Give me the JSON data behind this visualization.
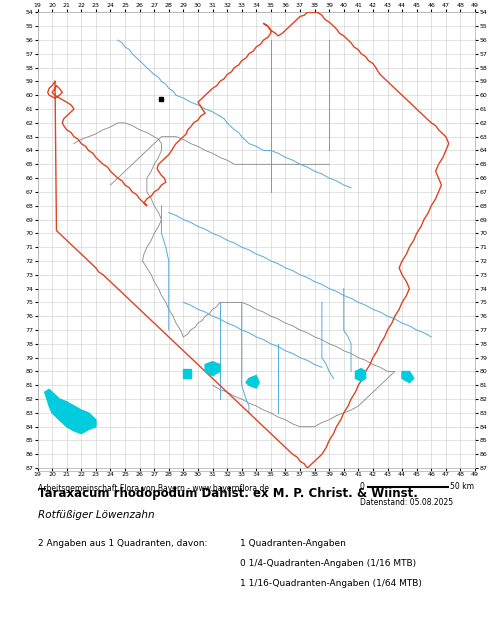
{
  "title": "Taraxacum rhodopodum Dahlst. ex M. P. Christ. & Wiinst.",
  "subtitle": "Rotfüßiger Löwenzahn",
  "credit": "Arbeitsgemeinschaft Flora von Bayern - www.bayernflora.de",
  "date_label": "Datenstand: 05.08.2025",
  "scale_label": "50 km",
  "stats_line1": "2 Angaben aus 1 Quadranten, davon:",
  "stats_col2_line1": "1 Quadranten-Angaben",
  "stats_col2_line2": "0 1/4-Quadranten-Angaben (1/16 MTB)",
  "stats_col2_line3": "1 1/16-Quadranten-Angaben (1/64 MTB)",
  "bg_color": "#ffffff",
  "grid_color": "#cccccc",
  "border_color_outer": "#dd4422",
  "border_color_inner": "#888888",
  "river_color": "#55aadd",
  "lake_color": "#00ccdd",
  "marker_color": "#000000",
  "x_ticks": [
    19,
    20,
    21,
    22,
    23,
    24,
    25,
    26,
    27,
    28,
    29,
    30,
    31,
    32,
    33,
    34,
    35,
    36,
    37,
    38,
    39,
    40,
    41,
    42,
    43,
    44,
    45,
    46,
    47,
    48,
    49
  ],
  "y_ticks": [
    54,
    55,
    56,
    57,
    58,
    59,
    60,
    61,
    62,
    63,
    64,
    65,
    66,
    67,
    68,
    69,
    70,
    71,
    72,
    73,
    74,
    75,
    76,
    77,
    78,
    79,
    80,
    81,
    82,
    83,
    84,
    85,
    86,
    87
  ],
  "x_min": 19,
  "x_max": 49,
  "y_min": 54,
  "y_max": 87,
  "marker_x": 27.5,
  "marker_y": 60.3,
  "bavaria_outer_x": [
    20.2,
    20.0,
    19.8,
    19.7,
    19.8,
    20.2,
    20.5,
    20.7,
    20.5,
    20.3,
    20.2,
    20.0,
    20.2,
    20.5,
    21.0,
    21.3,
    21.5,
    21.3,
    21.0,
    20.8,
    20.7,
    20.8,
    21.0,
    21.3,
    21.5,
    21.8,
    22.0,
    22.3,
    22.5,
    22.8,
    23.0,
    23.2,
    23.5,
    23.8,
    24.0,
    24.2,
    24.5,
    24.8,
    25.0,
    25.3,
    25.5,
    25.8,
    26.0,
    26.2,
    26.5,
    26.5,
    26.3,
    26.5,
    26.8,
    27.0,
    27.3,
    27.5,
    27.8,
    27.7,
    27.5,
    27.3,
    27.2,
    27.3,
    27.5,
    27.8,
    28.0,
    28.2,
    28.3,
    28.5,
    28.7,
    29.0,
    29.2,
    29.3,
    29.5,
    29.7,
    30.0,
    30.2,
    30.5,
    30.3,
    30.2,
    30.0,
    30.2,
    30.5,
    30.7,
    31.0,
    31.3,
    31.5,
    31.8,
    32.0,
    32.3,
    32.5,
    32.8,
    33.0,
    33.3,
    33.5,
    33.8,
    34.0,
    34.3,
    34.5,
    34.8,
    35.0,
    35.0,
    34.8,
    34.5,
    34.8,
    35.0,
    35.3,
    35.5,
    35.8,
    36.0,
    36.3,
    36.5,
    36.8,
    37.0,
    37.3,
    37.5,
    37.7,
    38.0,
    38.2,
    38.5,
    38.7,
    39.0,
    39.3,
    39.5,
    39.7,
    40.0,
    40.3,
    40.5,
    40.7,
    41.0,
    41.2,
    41.5,
    41.7,
    42.0,
    42.2,
    42.3,
    42.5,
    42.7,
    43.0,
    43.2,
    43.5,
    43.7,
    44.0,
    44.2,
    44.5,
    44.7,
    45.0,
    45.2,
    45.5,
    45.7,
    46.0,
    46.3,
    46.5,
    46.7,
    47.0,
    47.2,
    47.0,
    46.8,
    46.5,
    46.3,
    46.5,
    46.7,
    46.5,
    46.3,
    46.0,
    45.8,
    45.5,
    45.3,
    45.0,
    44.8,
    44.5,
    44.3,
    44.0,
    43.8,
    44.0,
    44.3,
    44.5,
    44.3,
    44.0,
    43.8,
    43.5,
    43.3,
    43.0,
    42.8,
    42.5,
    42.3,
    42.0,
    41.8,
    41.5,
    41.3,
    41.0,
    40.8,
    40.5,
    40.3,
    40.0,
    39.8,
    39.5,
    39.3,
    39.0,
    38.8,
    38.5,
    38.3,
    38.0,
    37.8,
    37.5,
    37.3,
    37.0,
    36.8,
    36.5,
    36.3,
    36.0,
    35.8,
    35.5,
    35.3,
    35.0,
    34.8,
    34.5,
    34.3,
    34.0,
    33.8,
    33.5,
    33.3,
    33.0,
    32.8,
    32.5,
    32.3,
    32.0,
    31.8,
    31.5,
    31.3,
    31.0,
    30.8,
    30.5,
    30.3,
    30.0,
    29.8,
    29.5,
    29.3,
    29.0,
    28.8,
    28.5,
    28.3,
    28.0,
    27.8,
    27.5,
    27.3,
    27.0,
    26.8,
    26.5,
    26.3,
    26.0,
    25.8,
    25.5,
    25.3,
    25.0,
    24.8,
    24.5,
    24.3,
    24.0,
    23.8,
    23.5,
    23.2,
    23.0,
    22.8,
    22.5,
    22.3,
    22.0,
    21.8,
    21.5,
    21.3,
    21.0,
    20.8,
    20.5,
    20.3,
    20.2
  ],
  "bavaria_outer_y": [
    59.0,
    59.3,
    59.5,
    59.8,
    60.0,
    60.2,
    60.0,
    59.8,
    59.5,
    59.3,
    59.5,
    59.8,
    60.0,
    60.2,
    60.5,
    60.7,
    61.0,
    61.2,
    61.5,
    61.7,
    62.0,
    62.2,
    62.5,
    62.7,
    63.0,
    63.2,
    63.5,
    63.7,
    64.0,
    64.2,
    64.5,
    64.7,
    65.0,
    65.2,
    65.5,
    65.7,
    66.0,
    66.2,
    66.5,
    66.7,
    67.0,
    67.2,
    67.5,
    67.7,
    68.0,
    68.0,
    67.8,
    67.5,
    67.3,
    67.0,
    66.8,
    66.5,
    66.3,
    66.0,
    65.8,
    65.5,
    65.3,
    65.0,
    64.8,
    64.5,
    64.3,
    64.0,
    63.8,
    63.5,
    63.3,
    63.0,
    62.8,
    62.5,
    62.3,
    62.0,
    61.8,
    61.5,
    61.3,
    61.0,
    60.8,
    60.5,
    60.3,
    60.0,
    59.8,
    59.5,
    59.3,
    59.0,
    58.8,
    58.5,
    58.3,
    58.0,
    57.8,
    57.5,
    57.3,
    57.0,
    56.8,
    56.5,
    56.3,
    56.0,
    55.8,
    55.5,
    55.3,
    55.0,
    54.8,
    55.0,
    55.3,
    55.5,
    55.7,
    55.5,
    55.3,
    55.0,
    54.8,
    54.5,
    54.3,
    54.2,
    54.0,
    54.0,
    54.0,
    54.0,
    54.2,
    54.5,
    54.7,
    55.0,
    55.2,
    55.5,
    55.7,
    56.0,
    56.2,
    56.5,
    56.7,
    57.0,
    57.2,
    57.5,
    57.7,
    58.0,
    58.2,
    58.5,
    58.7,
    59.0,
    59.2,
    59.5,
    59.7,
    60.0,
    60.2,
    60.5,
    60.7,
    61.0,
    61.2,
    61.5,
    61.7,
    62.0,
    62.2,
    62.5,
    62.7,
    63.0,
    63.5,
    64.0,
    64.5,
    65.0,
    65.5,
    66.0,
    66.5,
    67.0,
    67.5,
    68.0,
    68.5,
    69.0,
    69.5,
    70.0,
    70.5,
    71.0,
    71.5,
    72.0,
    72.5,
    73.0,
    73.5,
    74.0,
    74.5,
    75.0,
    75.5,
    76.0,
    76.5,
    77.0,
    77.5,
    78.0,
    78.5,
    79.0,
    79.5,
    80.0,
    80.5,
    81.0,
    81.5,
    82.0,
    82.5,
    83.0,
    83.5,
    84.0,
    84.5,
    85.0,
    85.5,
    86.0,
    86.2,
    86.5,
    86.7,
    87.0,
    86.7,
    86.5,
    86.2,
    86.0,
    85.8,
    85.5,
    85.3,
    85.0,
    84.8,
    84.5,
    84.3,
    84.0,
    83.8,
    83.5,
    83.3,
    83.0,
    82.8,
    82.5,
    82.3,
    82.0,
    81.8,
    81.5,
    81.3,
    81.0,
    80.8,
    80.5,
    80.3,
    80.0,
    79.8,
    79.5,
    79.3,
    79.0,
    78.8,
    78.5,
    78.3,
    78.0,
    77.8,
    77.5,
    77.3,
    77.0,
    76.8,
    76.5,
    76.3,
    76.0,
    75.8,
    75.5,
    75.3,
    75.0,
    74.8,
    74.5,
    74.3,
    74.0,
    73.8,
    73.5,
    73.3,
    73.0,
    72.8,
    72.5,
    72.3,
    72.0,
    71.8,
    71.5,
    71.3,
    71.0,
    70.8,
    70.5,
    70.3,
    70.0,
    69.8,
    59.0
  ],
  "inner_border_segments": [
    {
      "x": [
        21.5,
        22.0,
        22.5,
        23.0,
        23.5,
        24.0,
        24.5,
        25.0,
        25.5,
        26.0,
        26.5,
        27.0,
        27.3
      ],
      "y": [
        63.5,
        63.2,
        63.0,
        62.8,
        62.5,
        62.3,
        62.0,
        62.0,
        62.2,
        62.5,
        62.7,
        63.0,
        63.2
      ]
    },
    {
      "x": [
        27.3,
        27.5,
        28.0,
        28.5,
        29.0,
        29.5,
        30.0,
        30.5,
        31.0,
        31.5,
        32.0,
        32.5,
        33.0,
        33.5,
        34.0,
        34.5,
        35.0,
        35.5,
        36.0,
        36.5,
        37.0,
        37.5,
        38.0,
        38.5,
        39.0
      ],
      "y": [
        63.2,
        63.0,
        63.0,
        63.0,
        63.2,
        63.5,
        63.7,
        64.0,
        64.2,
        64.5,
        64.7,
        65.0,
        65.0,
        65.0,
        65.0,
        65.0,
        65.0,
        65.0,
        65.0,
        65.0,
        65.0,
        65.0,
        65.0,
        65.0,
        65.0
      ]
    },
    {
      "x": [
        27.3,
        27.0,
        26.8,
        26.5,
        26.3,
        26.0,
        25.8,
        25.5,
        25.3,
        25.0,
        24.8,
        24.5,
        24.3,
        24.0
      ],
      "y": [
        63.2,
        63.5,
        63.7,
        64.0,
        64.2,
        64.5,
        64.7,
        65.0,
        65.2,
        65.5,
        65.7,
        66.0,
        66.2,
        66.5
      ]
    },
    {
      "x": [
        27.3,
        27.5,
        27.5,
        27.3,
        27.0,
        26.8,
        26.5,
        26.5,
        26.8,
        27.0,
        27.3,
        27.5
      ],
      "y": [
        63.2,
        63.5,
        64.0,
        64.5,
        65.0,
        65.5,
        66.0,
        67.0,
        67.5,
        68.0,
        68.5,
        69.0
      ]
    },
    {
      "x": [
        27.5,
        27.3,
        27.0,
        26.8,
        26.5,
        26.3,
        26.2
      ],
      "y": [
        69.0,
        69.5,
        70.0,
        70.5,
        71.0,
        71.5,
        72.0
      ]
    },
    {
      "x": [
        26.2,
        26.5,
        26.8,
        27.0,
        27.3,
        27.5,
        27.8,
        28.0,
        28.3,
        28.5,
        28.8,
        29.0
      ],
      "y": [
        72.0,
        72.5,
        73.0,
        73.5,
        74.0,
        74.5,
        75.0,
        75.5,
        76.0,
        76.5,
        77.0,
        77.5
      ]
    },
    {
      "x": [
        29.0,
        29.3,
        29.5,
        29.8,
        30.0,
        30.3,
        30.5,
        30.8,
        31.0,
        31.3,
        31.5,
        32.0
      ],
      "y": [
        77.5,
        77.3,
        77.0,
        76.8,
        76.5,
        76.3,
        76.0,
        75.8,
        75.5,
        75.3,
        75.0,
        75.0
      ]
    },
    {
      "x": [
        32.0,
        32.5,
        33.0,
        33.5,
        34.0,
        34.5,
        35.0,
        35.5,
        36.0,
        36.5,
        37.0,
        37.5,
        38.0,
        38.5,
        39.0,
        39.5,
        40.0,
        40.5,
        41.0,
        41.5,
        42.0,
        42.5,
        43.0,
        43.5
      ],
      "y": [
        75.0,
        75.0,
        75.0,
        75.2,
        75.5,
        75.7,
        76.0,
        76.2,
        76.5,
        76.7,
        77.0,
        77.2,
        77.5,
        77.7,
        78.0,
        78.2,
        78.5,
        78.7,
        79.0,
        79.2,
        79.5,
        79.7,
        80.0,
        80.0
      ]
    },
    {
      "x": [
        43.5,
        43.0,
        42.5,
        42.0,
        41.5,
        41.0,
        40.5,
        40.0,
        39.5,
        39.0,
        38.5,
        38.0,
        37.5,
        37.0,
        36.5,
        36.0,
        35.5,
        35.0,
        34.5,
        34.0,
        33.5,
        33.0,
        32.5,
        32.0,
        31.5,
        31.0
      ],
      "y": [
        80.0,
        80.5,
        81.0,
        81.5,
        82.0,
        82.5,
        82.8,
        83.0,
        83.2,
        83.5,
        83.7,
        84.0,
        84.0,
        84.0,
        83.8,
        83.5,
        83.3,
        83.0,
        82.8,
        82.5,
        82.3,
        82.0,
        81.8,
        81.5,
        81.3,
        81.0
      ]
    },
    {
      "x": [
        35.0,
        35.0,
        35.0,
        35.0,
        35.0,
        35.0,
        35.0,
        35.0,
        35.0,
        35.0,
        35.0,
        35.0
      ],
      "y": [
        56.0,
        57.0,
        58.0,
        59.0,
        60.0,
        61.0,
        62.0,
        63.0,
        64.0,
        65.0,
        66.0,
        67.0
      ]
    },
    {
      "x": [
        39.0,
        39.0,
        39.0,
        39.0,
        39.0,
        39.0,
        39.0,
        39.0,
        39.0
      ],
      "y": [
        56.0,
        57.0,
        58.0,
        59.0,
        60.0,
        61.0,
        62.0,
        63.0,
        64.0
      ]
    }
  ],
  "rivers": [
    {
      "x": [
        24.5,
        24.8,
        25.0,
        25.3,
        25.5,
        25.8,
        26.0,
        26.3,
        26.5,
        26.8,
        27.0
      ],
      "y": [
        56.0,
        56.2,
        56.5,
        56.7,
        57.0,
        57.3,
        57.5,
        57.8,
        58.0,
        58.3,
        58.5
      ]
    },
    {
      "x": [
        27.0,
        27.3,
        27.5,
        27.8,
        28.0,
        28.3,
        28.5,
        29.0,
        29.5,
        30.0,
        30.5,
        31.0,
        31.5
      ],
      "y": [
        58.5,
        58.7,
        59.0,
        59.2,
        59.5,
        59.7,
        60.0,
        60.2,
        60.5,
        60.7,
        61.0,
        61.2,
        61.5
      ]
    },
    {
      "x": [
        31.5,
        31.8,
        32.0,
        32.3,
        32.5,
        32.8,
        33.0,
        33.3,
        33.5,
        34.0,
        34.5,
        35.0
      ],
      "y": [
        61.5,
        61.7,
        62.0,
        62.3,
        62.5,
        62.7,
        63.0,
        63.3,
        63.5,
        63.7,
        64.0,
        64.0
      ]
    },
    {
      "x": [
        35.0,
        35.5,
        36.0,
        36.5,
        37.0,
        37.5,
        38.0,
        38.5,
        39.0,
        39.5,
        40.0,
        40.5
      ],
      "y": [
        64.0,
        64.2,
        64.5,
        64.7,
        65.0,
        65.2,
        65.5,
        65.7,
        66.0,
        66.2,
        66.5,
        66.7
      ]
    },
    {
      "x": [
        28.0,
        28.5,
        29.0,
        29.5,
        30.0,
        30.5,
        31.0,
        31.5,
        32.0,
        32.5,
        33.0,
        33.5,
        34.0,
        34.5,
        35.0,
        35.5,
        36.0,
        36.5,
        37.0,
        37.5,
        38.0
      ],
      "y": [
        68.5,
        68.7,
        69.0,
        69.2,
        69.5,
        69.7,
        70.0,
        70.2,
        70.5,
        70.7,
        71.0,
        71.2,
        71.5,
        71.7,
        72.0,
        72.2,
        72.5,
        72.7,
        73.0,
        73.2,
        73.5
      ]
    },
    {
      "x": [
        38.0,
        38.5,
        39.0,
        39.5,
        40.0,
        40.5,
        41.0,
        41.5,
        42.0,
        42.5,
        43.0,
        43.5,
        44.0,
        44.5,
        45.0,
        45.5,
        46.0
      ],
      "y": [
        73.5,
        73.7,
        74.0,
        74.2,
        74.5,
        74.7,
        75.0,
        75.2,
        75.5,
        75.7,
        76.0,
        76.2,
        76.5,
        76.7,
        77.0,
        77.2,
        77.5
      ]
    },
    {
      "x": [
        29.0,
        29.5,
        30.0,
        30.5,
        31.0,
        31.5,
        32.0,
        32.5,
        33.0,
        33.5,
        34.0,
        34.5,
        35.0,
        35.5,
        36.0,
        36.5,
        37.0,
        37.5,
        38.0,
        38.5
      ],
      "y": [
        75.0,
        75.2,
        75.5,
        75.7,
        76.0,
        76.2,
        76.5,
        76.7,
        77.0,
        77.2,
        77.5,
        77.7,
        78.0,
        78.2,
        78.5,
        78.7,
        79.0,
        79.2,
        79.5,
        79.7
      ]
    },
    {
      "x": [
        27.5,
        27.5,
        27.5,
        27.8,
        28.0,
        28.0,
        28.0,
        28.0,
        28.0,
        28.0
      ],
      "y": [
        68.0,
        69.0,
        70.0,
        71.0,
        72.0,
        73.0,
        74.0,
        75.0,
        76.0,
        77.0
      ]
    },
    {
      "x": [
        31.5,
        31.5,
        31.5,
        31.5,
        31.5,
        31.5,
        31.5,
        31.5
      ],
      "y": [
        75.0,
        76.0,
        77.0,
        78.0,
        79.0,
        80.0,
        81.0,
        82.0
      ]
    },
    {
      "x": [
        33.0,
        33.0,
        33.0,
        33.0,
        33.0,
        33.0,
        33.0,
        33.3,
        33.5,
        33.5
      ],
      "y": [
        75.0,
        76.0,
        77.0,
        78.0,
        79.0,
        80.0,
        81.0,
        82.0,
        82.5,
        83.0
      ]
    },
    {
      "x": [
        38.5,
        38.5,
        38.5,
        38.5,
        38.5,
        38.8,
        39.0,
        39.3
      ],
      "y": [
        75.0,
        76.0,
        77.0,
        78.0,
        79.0,
        79.5,
        80.0,
        80.5
      ]
    },
    {
      "x": [
        40.0,
        40.0,
        40.0,
        40.0,
        40.3,
        40.5,
        40.5,
        40.5
      ],
      "y": [
        74.0,
        75.0,
        76.0,
        77.0,
        77.5,
        78.0,
        79.0,
        80.0
      ]
    },
    {
      "x": [
        35.5,
        35.5,
        35.5,
        35.5,
        35.5,
        35.5
      ],
      "y": [
        78.0,
        79.0,
        80.0,
        81.0,
        82.0,
        83.0
      ]
    }
  ],
  "lakes": [
    {
      "x": [
        19.5,
        19.8,
        20.0,
        20.3,
        20.5,
        21.0,
        21.5,
        22.0,
        22.5,
        23.0,
        23.0,
        22.5,
        22.0,
        21.5,
        21.0,
        20.5,
        20.0,
        19.8,
        19.5
      ],
      "y": [
        81.5,
        81.3,
        81.5,
        81.8,
        82.0,
        82.2,
        82.5,
        82.8,
        83.0,
        83.5,
        84.0,
        84.2,
        84.5,
        84.3,
        84.0,
        83.5,
        83.0,
        82.5,
        81.5
      ]
    },
    {
      "x": [
        30.5,
        31.0,
        31.5,
        31.5,
        31.0,
        30.5
      ],
      "y": [
        79.5,
        79.3,
        79.5,
        80.0,
        80.3,
        80.0
      ]
    },
    {
      "x": [
        29.0,
        29.5,
        29.5,
        29.0
      ],
      "y": [
        79.8,
        79.8,
        80.5,
        80.5
      ]
    },
    {
      "x": [
        33.5,
        34.0,
        34.2,
        34.0,
        33.5,
        33.3
      ],
      "y": [
        80.5,
        80.3,
        80.8,
        81.2,
        81.0,
        80.8
      ]
    },
    {
      "x": [
        40.8,
        41.2,
        41.5,
        41.5,
        41.2,
        40.8
      ],
      "y": [
        80.0,
        79.8,
        80.0,
        80.5,
        80.7,
        80.5
      ]
    },
    {
      "x": [
        44.0,
        44.5,
        44.8,
        44.5,
        44.0
      ],
      "y": [
        80.0,
        80.0,
        80.5,
        80.8,
        80.5
      ]
    }
  ]
}
